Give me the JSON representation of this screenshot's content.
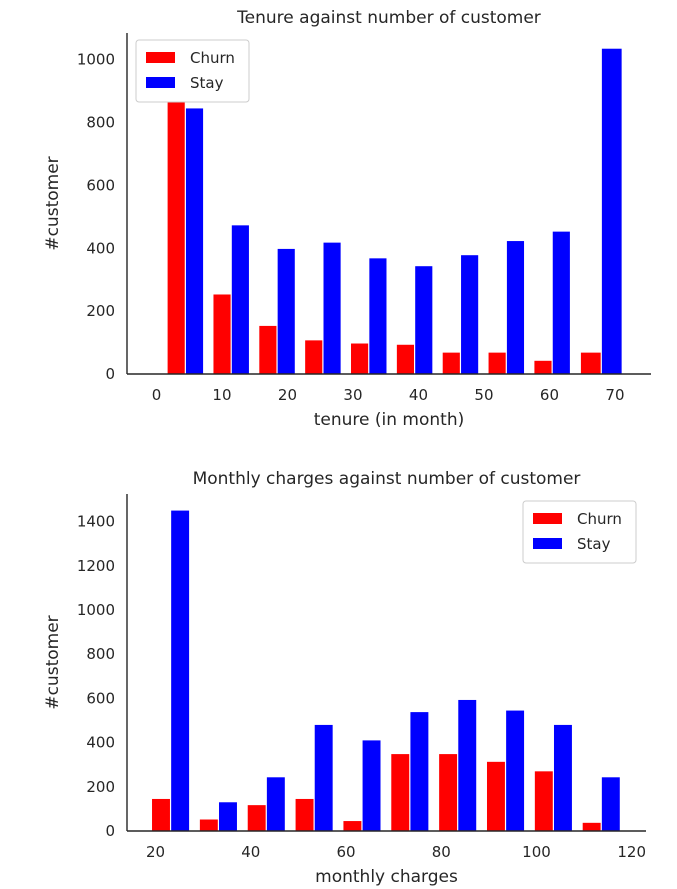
{
  "colors": {
    "churn": "#ff0000",
    "stay": "#0000ff",
    "axis": "#262626"
  },
  "chart_data": [
    {
      "type": "bar",
      "title": "Tenure against number of customer",
      "xlabel": "tenure (in month)",
      "ylabel": "#customer",
      "xlim": [
        -4.5,
        75.5
      ],
      "ylim": [
        0,
        1085
      ],
      "xticks": [
        0,
        10,
        20,
        30,
        40,
        50,
        60,
        70
      ],
      "yticks": [
        0,
        200,
        400,
        600,
        800,
        1000
      ],
      "legend_position": "top-left",
      "bins": [
        [
          1,
          8
        ],
        [
          8,
          15
        ],
        [
          15,
          22
        ],
        [
          22,
          29
        ],
        [
          29,
          36
        ],
        [
          36,
          43
        ],
        [
          43,
          50
        ],
        [
          50,
          57
        ],
        [
          57,
          64
        ],
        [
          64,
          72
        ]
      ],
      "series": [
        {
          "name": "Churn",
          "color": "#ff0000",
          "values": [
            875,
            253,
            153,
            107,
            97,
            93,
            68,
            68,
            42,
            68
          ]
        },
        {
          "name": "Stay",
          "color": "#0000ff",
          "values": [
            845,
            473,
            398,
            418,
            368,
            343,
            378,
            423,
            453,
            1035
          ]
        }
      ]
    },
    {
      "type": "bar",
      "title": "Monthly charges against number of customer",
      "xlabel": "monthly charges",
      "ylabel": "#customer",
      "xlim": [
        14,
        123
      ],
      "ylim": [
        0,
        1525
      ],
      "xticks": [
        20,
        40,
        60,
        80,
        100,
        120
      ],
      "yticks": [
        0,
        200,
        400,
        600,
        800,
        1000,
        1200,
        1400
      ],
      "legend_position": "top-right",
      "bins": [
        [
          18.25,
          28.3
        ],
        [
          28.3,
          38.35
        ],
        [
          38.35,
          48.4
        ],
        [
          48.4,
          58.45
        ],
        [
          58.45,
          68.5
        ],
        [
          68.5,
          78.55
        ],
        [
          78.55,
          88.6
        ],
        [
          88.6,
          98.65
        ],
        [
          98.65,
          108.7
        ],
        [
          108.7,
          118.75
        ]
      ],
      "series": [
        {
          "name": "Churn",
          "color": "#ff0000",
          "values": [
            145,
            52,
            117,
            145,
            45,
            348,
            348,
            313,
            270,
            37
          ]
        },
        {
          "name": "Stay",
          "color": "#0000ff",
          "values": [
            1450,
            130,
            243,
            480,
            410,
            538,
            593,
            545,
            480,
            243
          ]
        }
      ]
    }
  ]
}
